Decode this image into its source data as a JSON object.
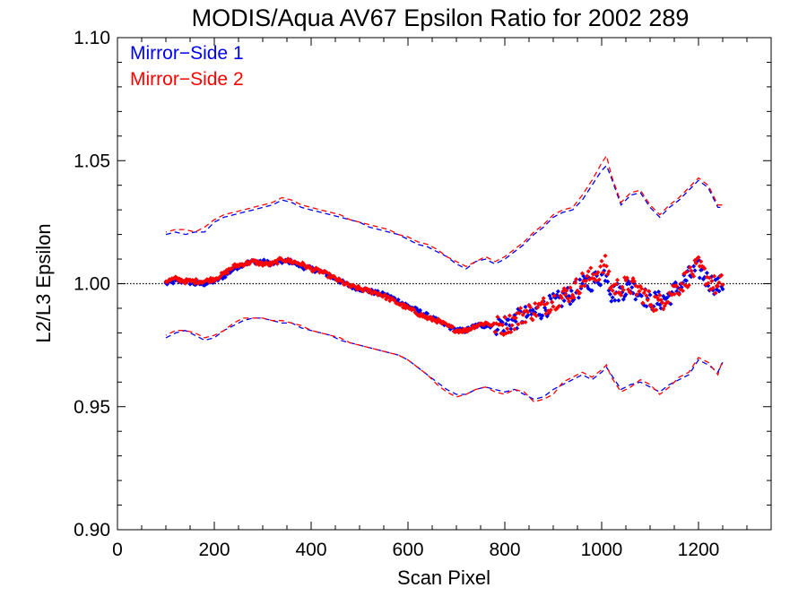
{
  "chart_data": {
    "type": "scatter",
    "title": "MODIS/Aqua AV67 Epsilon Ratio for 2002 289",
    "xlabel": "Scan Pixel",
    "ylabel": "L2/L3 Epsilon",
    "xlim": [
      0,
      1350
    ],
    "ylim": [
      0.9,
      1.1
    ],
    "x_ticks": [
      0,
      200,
      400,
      600,
      800,
      1000,
      1200
    ],
    "x_tick_labels": [
      "0",
      "200",
      "400",
      "600",
      "800",
      "1000",
      "1200"
    ],
    "y_ticks": [
      0.9,
      0.95,
      1.0,
      1.05,
      1.1
    ],
    "y_tick_labels": [
      "0.90",
      "0.95",
      "1.00",
      "1.05",
      "1.10"
    ],
    "reference_line": 1.0,
    "legend_position": "top-left",
    "colors": {
      "ms1": "#0000ee",
      "ms2": "#ff0000",
      "axis": "#000000"
    },
    "series": [
      {
        "name": "Mirror−Side 1",
        "color": "#0000ee",
        "mean_x": [
          100,
          120,
          140,
          160,
          180,
          200,
          220,
          240,
          260,
          280,
          300,
          320,
          340,
          360,
          380,
          400,
          420,
          440,
          460,
          480,
          500,
          520,
          540,
          560,
          580,
          600,
          620,
          640,
          660,
          680,
          700,
          720,
          740,
          760,
          780,
          800,
          820,
          840,
          860,
          880,
          900,
          920,
          940,
          960,
          980,
          1000,
          1010,
          1020,
          1040,
          1060,
          1080,
          1100,
          1120,
          1140,
          1160,
          1180,
          1200,
          1220,
          1240,
          1250
        ],
        "mean_y": [
          1.0,
          1.001,
          1.001,
          1.0,
          1.0,
          1.001,
          1.003,
          1.006,
          1.008,
          1.009,
          1.009,
          1.008,
          1.009,
          1.009,
          1.007,
          1.006,
          1.005,
          1.003,
          1.001,
          0.999,
          0.998,
          0.997,
          0.996,
          0.995,
          0.993,
          0.991,
          0.989,
          0.987,
          0.985,
          0.983,
          0.981,
          0.981,
          0.983,
          0.983,
          0.983,
          0.984,
          0.985,
          0.987,
          0.988,
          0.99,
          0.992,
          0.994,
          0.996,
          0.999,
          1.001,
          1.003,
          1.005,
          0.996,
          0.997,
          0.999,
          0.996,
          0.993,
          0.993,
          0.995,
          0.999,
          1.003,
          1.006,
          1.001,
          0.999,
          1.0
        ],
        "upper_x": [
          100,
          120,
          140,
          160,
          180,
          200,
          220,
          240,
          260,
          280,
          300,
          320,
          340,
          360,
          380,
          400,
          420,
          440,
          460,
          480,
          500,
          520,
          540,
          560,
          580,
          600,
          620,
          640,
          660,
          680,
          700,
          720,
          740,
          760,
          780,
          800,
          820,
          840,
          860,
          880,
          900,
          920,
          940,
          960,
          980,
          1000,
          1010,
          1020,
          1040,
          1060,
          1080,
          1100,
          1120,
          1140,
          1160,
          1180,
          1200,
          1220,
          1240,
          1250
        ],
        "upper_y": [
          1.02,
          1.021,
          1.02,
          1.021,
          1.021,
          1.025,
          1.027,
          1.028,
          1.029,
          1.03,
          1.031,
          1.032,
          1.034,
          1.033,
          1.031,
          1.03,
          1.029,
          1.028,
          1.027,
          1.026,
          1.025,
          1.023,
          1.022,
          1.021,
          1.02,
          1.018,
          1.016,
          1.015,
          1.013,
          1.011,
          1.008,
          1.006,
          1.009,
          1.01,
          1.008,
          1.01,
          1.013,
          1.016,
          1.02,
          1.023,
          1.027,
          1.029,
          1.03,
          1.034,
          1.04,
          1.046,
          1.048,
          1.043,
          1.032,
          1.036,
          1.037,
          1.031,
          1.027,
          1.031,
          1.034,
          1.038,
          1.042,
          1.039,
          1.031,
          1.031
        ],
        "lower_x": [
          100,
          120,
          140,
          160,
          180,
          200,
          220,
          240,
          260,
          280,
          300,
          320,
          340,
          360,
          380,
          400,
          420,
          440,
          460,
          480,
          500,
          520,
          540,
          560,
          580,
          600,
          620,
          640,
          660,
          680,
          700,
          720,
          740,
          760,
          780,
          800,
          820,
          840,
          860,
          880,
          900,
          920,
          940,
          960,
          980,
          1000,
          1010,
          1020,
          1040,
          1060,
          1080,
          1100,
          1120,
          1140,
          1160,
          1180,
          1200,
          1220,
          1240,
          1250
        ],
        "lower_y": [
          0.978,
          0.98,
          0.981,
          0.979,
          0.977,
          0.978,
          0.981,
          0.983,
          0.985,
          0.986,
          0.986,
          0.985,
          0.984,
          0.984,
          0.982,
          0.981,
          0.98,
          0.979,
          0.977,
          0.976,
          0.975,
          0.974,
          0.973,
          0.972,
          0.971,
          0.969,
          0.966,
          0.963,
          0.96,
          0.957,
          0.955,
          0.955,
          0.957,
          0.958,
          0.957,
          0.956,
          0.957,
          0.955,
          0.953,
          0.954,
          0.957,
          0.959,
          0.961,
          0.963,
          0.961,
          0.964,
          0.966,
          0.963,
          0.957,
          0.959,
          0.96,
          0.958,
          0.956,
          0.959,
          0.961,
          0.963,
          0.969,
          0.967,
          0.964,
          0.968
        ]
      },
      {
        "name": "Mirror−Side 2",
        "color": "#ff0000",
        "mean_x": [
          100,
          120,
          140,
          160,
          180,
          200,
          220,
          240,
          260,
          280,
          300,
          320,
          340,
          360,
          380,
          400,
          420,
          440,
          460,
          480,
          500,
          520,
          540,
          560,
          580,
          600,
          620,
          640,
          660,
          680,
          700,
          720,
          740,
          760,
          780,
          800,
          820,
          840,
          860,
          880,
          900,
          920,
          940,
          960,
          980,
          1000,
          1010,
          1020,
          1040,
          1060,
          1080,
          1100,
          1120,
          1140,
          1160,
          1180,
          1200,
          1220,
          1240,
          1250
        ],
        "mean_y": [
          1.001,
          1.002,
          1.001,
          1.001,
          1.001,
          1.002,
          1.004,
          1.007,
          1.008,
          1.009,
          1.008,
          1.008,
          1.01,
          1.009,
          1.008,
          1.006,
          1.005,
          1.003,
          1.001,
          0.999,
          0.998,
          0.997,
          0.996,
          0.994,
          0.992,
          0.99,
          0.988,
          0.986,
          0.985,
          0.983,
          0.981,
          0.981,
          0.983,
          0.984,
          0.983,
          0.983,
          0.985,
          0.988,
          0.989,
          0.991,
          0.993,
          0.995,
          0.997,
          1.001,
          1.003,
          1.006,
          1.008,
          0.998,
          0.999,
          0.999,
          0.997,
          0.993,
          0.992,
          0.996,
          0.999,
          1.003,
          1.007,
          1.002,
          0.998,
          1.001
        ],
        "upper_x": [
          100,
          120,
          140,
          160,
          180,
          200,
          220,
          240,
          260,
          280,
          300,
          320,
          340,
          360,
          380,
          400,
          420,
          440,
          460,
          480,
          500,
          520,
          540,
          560,
          580,
          600,
          620,
          640,
          660,
          680,
          700,
          720,
          740,
          760,
          780,
          800,
          820,
          840,
          860,
          880,
          900,
          920,
          940,
          960,
          980,
          1000,
          1010,
          1020,
          1040,
          1060,
          1080,
          1100,
          1120,
          1140,
          1160,
          1180,
          1200,
          1220,
          1240,
          1250
        ],
        "upper_y": [
          1.021,
          1.022,
          1.022,
          1.021,
          1.023,
          1.026,
          1.028,
          1.029,
          1.03,
          1.031,
          1.032,
          1.033,
          1.035,
          1.034,
          1.032,
          1.031,
          1.03,
          1.029,
          1.028,
          1.026,
          1.025,
          1.024,
          1.023,
          1.022,
          1.02,
          1.019,
          1.017,
          1.016,
          1.014,
          1.011,
          1.009,
          1.007,
          1.009,
          1.011,
          1.009,
          1.011,
          1.014,
          1.017,
          1.021,
          1.024,
          1.028,
          1.03,
          1.031,
          1.036,
          1.042,
          1.049,
          1.052,
          1.044,
          1.033,
          1.037,
          1.038,
          1.032,
          1.028,
          1.032,
          1.035,
          1.039,
          1.043,
          1.04,
          1.032,
          1.032
        ],
        "lower_x": [
          100,
          120,
          140,
          160,
          180,
          200,
          220,
          240,
          260,
          280,
          300,
          320,
          340,
          360,
          380,
          400,
          420,
          440,
          460,
          480,
          500,
          520,
          540,
          560,
          580,
          600,
          620,
          640,
          660,
          680,
          700,
          720,
          740,
          760,
          780,
          800,
          820,
          840,
          860,
          880,
          900,
          920,
          940,
          960,
          980,
          1000,
          1010,
          1020,
          1040,
          1060,
          1080,
          1100,
          1120,
          1140,
          1160,
          1180,
          1200,
          1220,
          1240,
          1250
        ],
        "lower_y": [
          0.979,
          0.981,
          0.981,
          0.98,
          0.978,
          0.979,
          0.981,
          0.984,
          0.986,
          0.986,
          0.986,
          0.985,
          0.985,
          0.984,
          0.983,
          0.981,
          0.98,
          0.979,
          0.978,
          0.976,
          0.975,
          0.974,
          0.973,
          0.972,
          0.971,
          0.969,
          0.966,
          0.963,
          0.959,
          0.956,
          0.954,
          0.955,
          0.957,
          0.958,
          0.956,
          0.955,
          0.957,
          0.956,
          0.952,
          0.953,
          0.955,
          0.96,
          0.962,
          0.964,
          0.962,
          0.965,
          0.967,
          0.962,
          0.956,
          0.958,
          0.961,
          0.959,
          0.955,
          0.958,
          0.962,
          0.964,
          0.97,
          0.968,
          0.963,
          0.969
        ]
      }
    ]
  }
}
